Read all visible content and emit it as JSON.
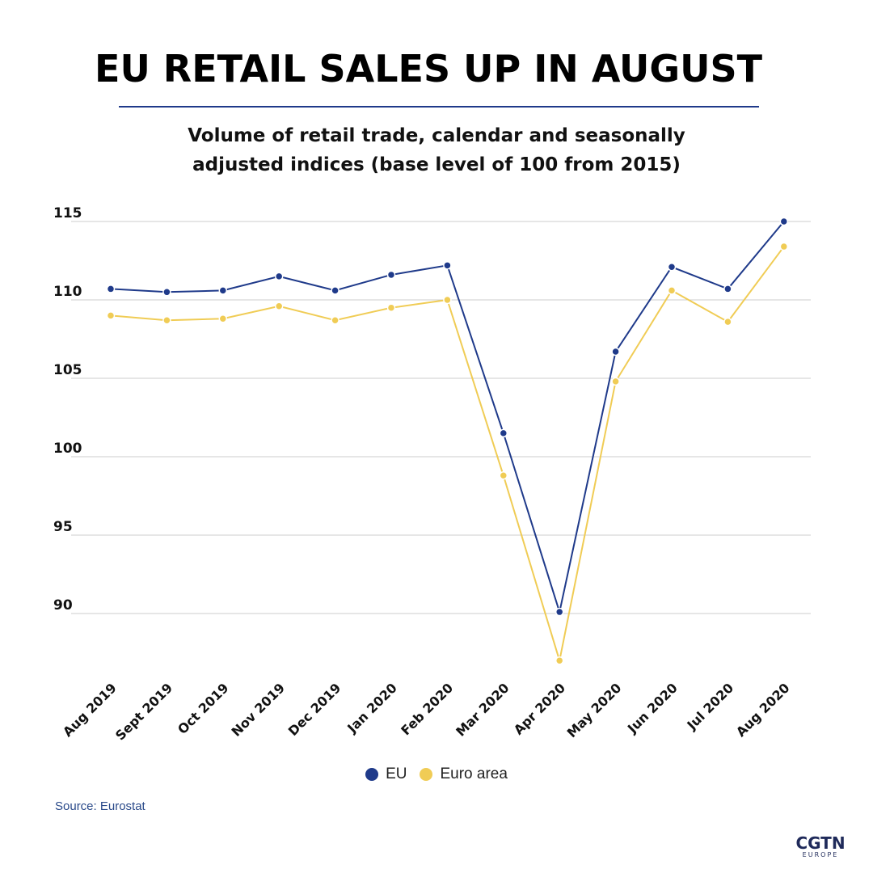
{
  "title": "EU RETAIL SALES UP IN AUGUST",
  "subtitle_line1": "Volume of retail trade, calendar and seasonally",
  "subtitle_line2": "adjusted indices (base level of 100 from 2015)",
  "source": "Source: Eurostat",
  "logo": {
    "main": "CGTN",
    "sub": "EUROPE"
  },
  "colors": {
    "eu": "#1f3a8a",
    "euro_area": "#f0cc55",
    "grid": "#cccccc",
    "rule": "#1f3a8a"
  },
  "chart_data": {
    "type": "line",
    "categories": [
      "Aug 2019",
      "Sept 2019",
      "Oct 2019",
      "Nov 2019",
      "Dec 2019",
      "Jan 2020",
      "Feb 2020",
      "Mar 2020",
      "Apr 2020",
      "May 2020",
      "Jun 2020",
      "Jul 2020",
      "Aug 2020"
    ],
    "series": [
      {
        "name": "EU",
        "color": "#1f3a8a",
        "values": [
          110.7,
          110.5,
          110.6,
          111.5,
          110.6,
          111.6,
          112.2,
          101.5,
          90.1,
          106.7,
          112.1,
          110.7,
          115.0
        ]
      },
      {
        "name": "Euro area",
        "color": "#f0cc55",
        "values": [
          109.0,
          108.7,
          108.8,
          109.6,
          108.7,
          109.5,
          110.0,
          98.8,
          87.0,
          104.8,
          110.6,
          108.6,
          113.4
        ]
      }
    ],
    "ylim": [
      87,
      115
    ],
    "yticks": [
      90,
      95,
      100,
      105,
      110,
      115
    ],
    "grid": true,
    "legend": "bottom-center"
  }
}
